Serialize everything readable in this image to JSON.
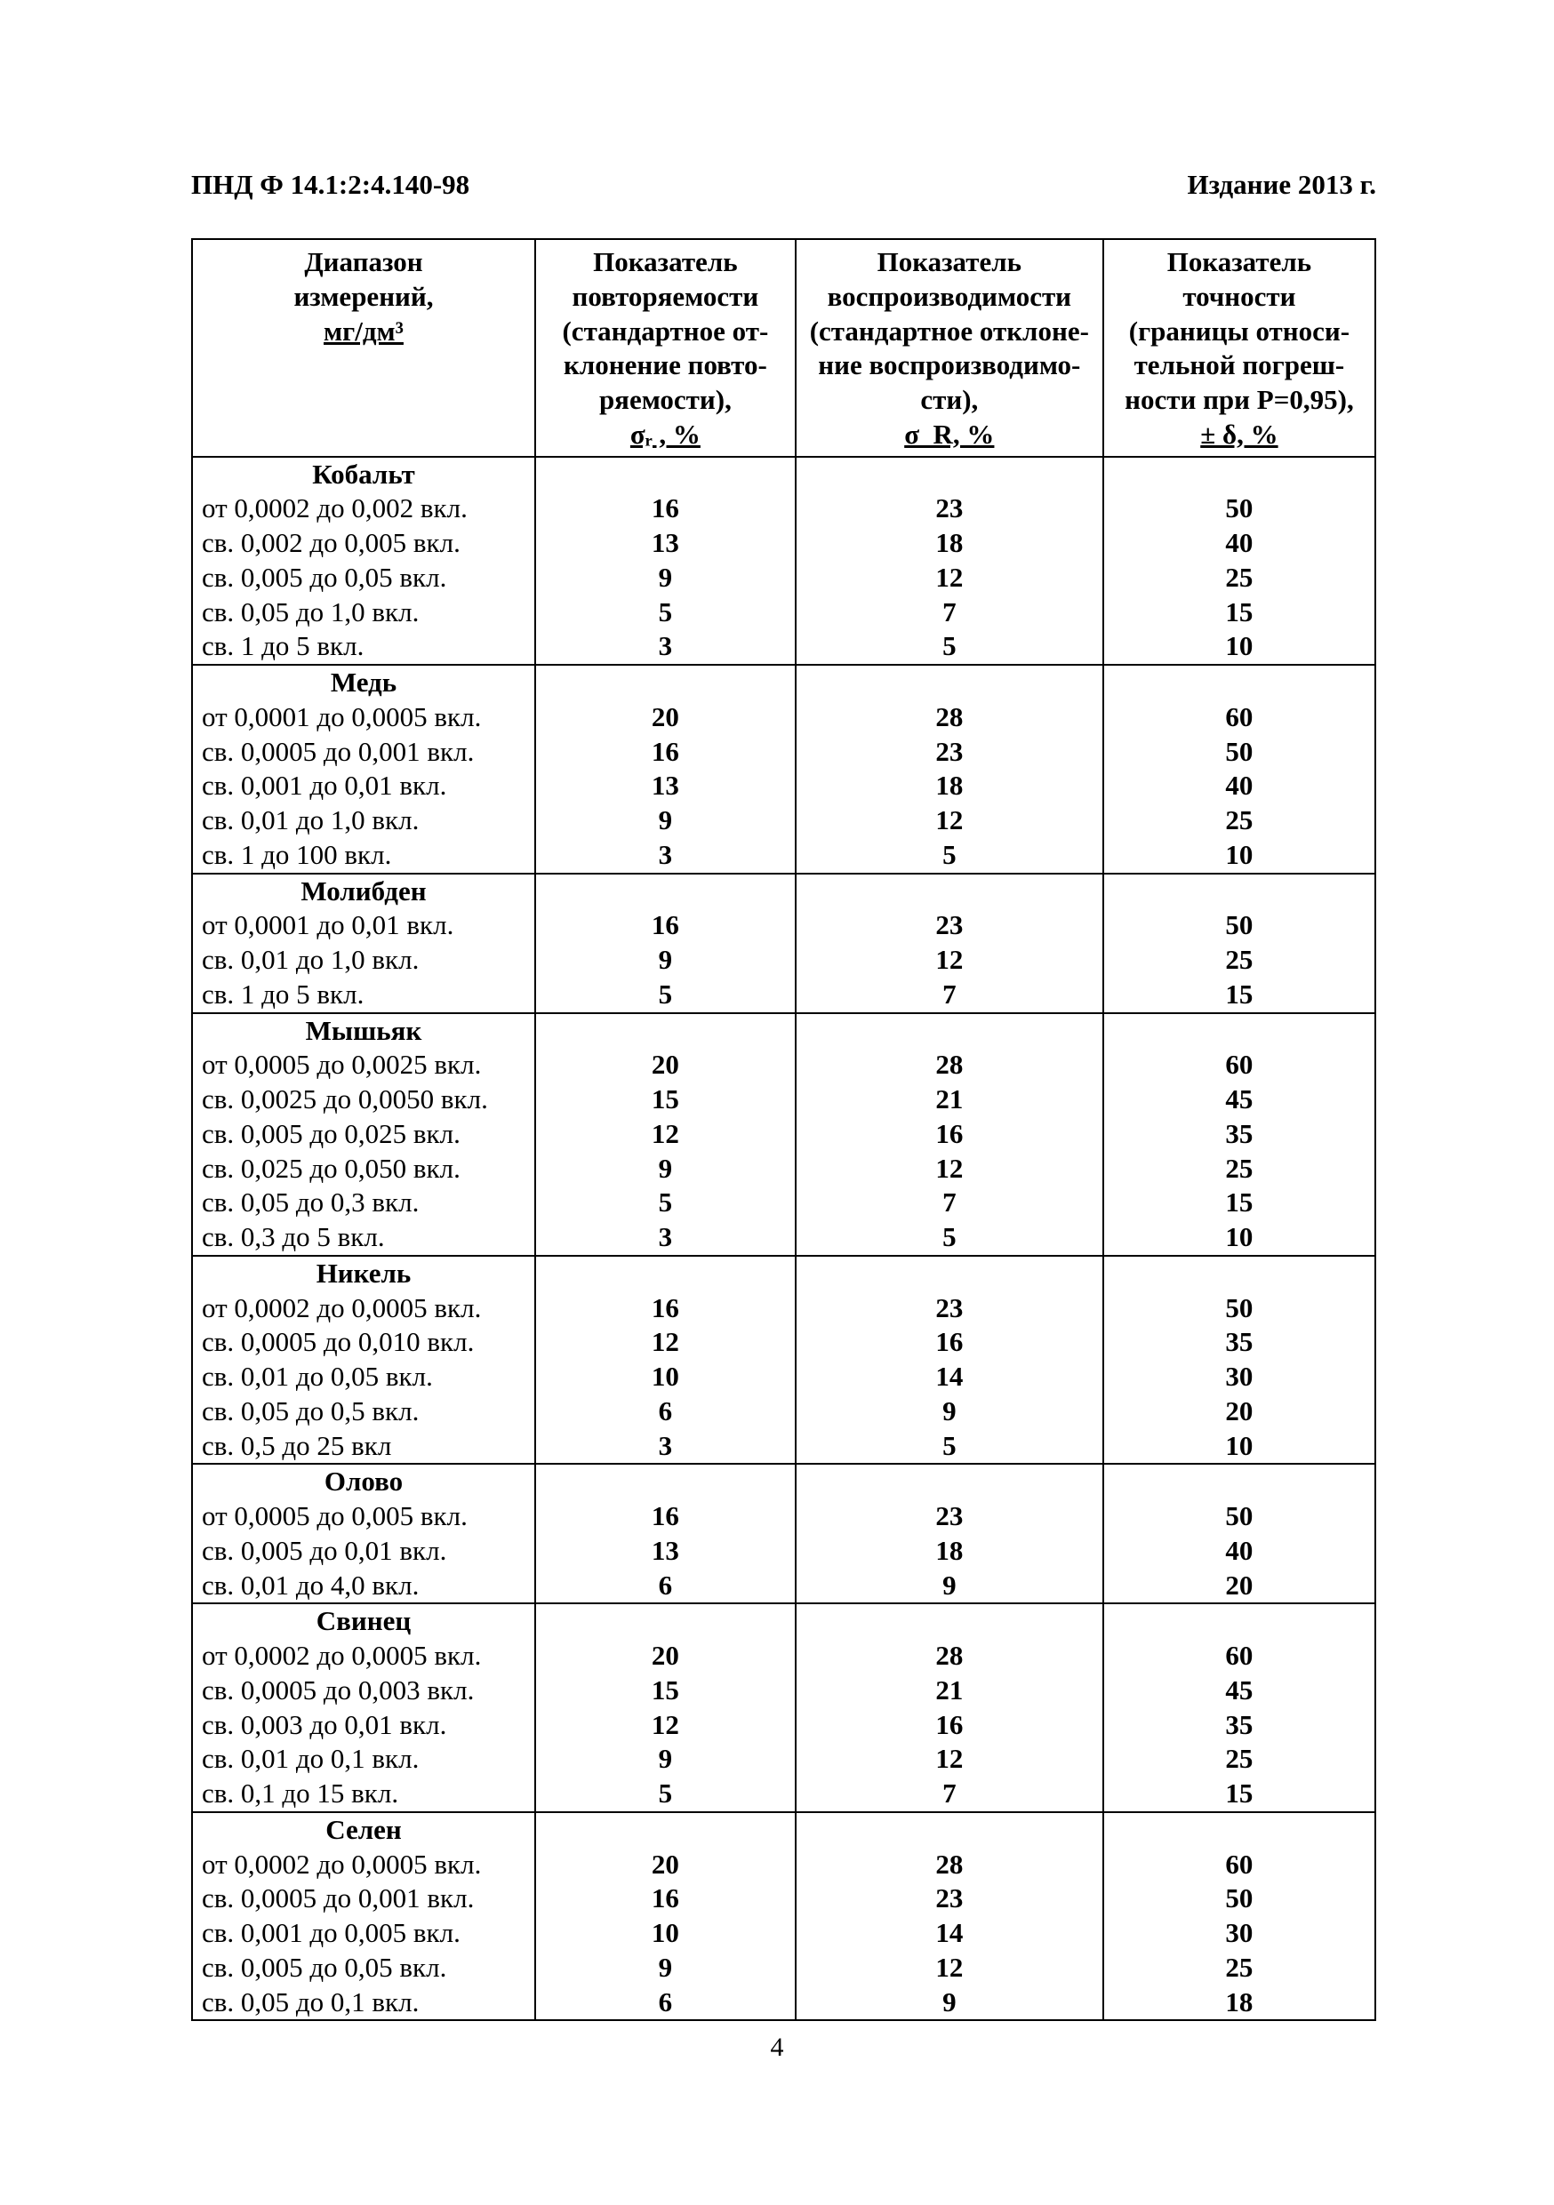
{
  "header": {
    "doc_code": "ПНД Ф 14.1:2:4.140-98",
    "edition": "Издание 2013 г."
  },
  "page_number": "4",
  "table": {
    "columns": [
      {
        "lines": [
          "Диапазон",
          "измерений,",
          "мг/дм³"
        ]
      },
      {
        "lines": [
          "Показатель",
          "повторяемости",
          "(стандартное от-",
          "клонение повто-",
          "ряемости),",
          "σᵣ , %"
        ]
      },
      {
        "lines": [
          "Показатель",
          "воспроизводимости",
          "(стандартное отклоне-",
          "ние воспроизводимо-",
          "сти),",
          "σ_R, %"
        ]
      },
      {
        "lines": [
          "Показатель",
          "точности",
          "(границы относи-",
          "тельной погреш-",
          "ности при P=0,95),",
          "± δ, %"
        ]
      }
    ],
    "sections": [
      {
        "title": "Кобальт",
        "rows": [
          {
            "range": "от 0,0002 до 0,002 вкл.",
            "r": "16",
            "R": "23",
            "d": "50"
          },
          {
            "range": "св. 0,002 до 0,005 вкл.",
            "r": "13",
            "R": "18",
            "d": "40"
          },
          {
            "range": "св. 0,005 до 0,05 вкл.",
            "r": "9",
            "R": "12",
            "d": "25"
          },
          {
            "range": "св. 0,05 до 1,0 вкл.",
            "r": "5",
            "R": "7",
            "d": "15"
          },
          {
            "range": "св. 1 до 5 вкл.",
            "r": "3",
            "R": "5",
            "d": "10"
          }
        ]
      },
      {
        "title": "Медь",
        "rows": [
          {
            "range": "от 0,0001 до 0,0005 вкл.",
            "r": "20",
            "R": "28",
            "d": "60"
          },
          {
            "range": "св. 0,0005 до 0,001 вкл.",
            "r": "16",
            "R": "23",
            "d": "50"
          },
          {
            "range": "св. 0,001 до 0,01 вкл.",
            "r": "13",
            "R": "18",
            "d": "40"
          },
          {
            "range": "св. 0,01 до 1,0 вкл.",
            "r": "9",
            "R": "12",
            "d": "25"
          },
          {
            "range": "св. 1 до 100 вкл.",
            "r": "3",
            "R": "5",
            "d": "10"
          }
        ]
      },
      {
        "title": "Молибден",
        "rows": [
          {
            "range": "от 0,0001 до 0,01 вкл.",
            "r": "16",
            "R": "23",
            "d": "50"
          },
          {
            "range": "св. 0,01 до 1,0 вкл.",
            "r": "9",
            "R": "12",
            "d": "25"
          },
          {
            "range": "св. 1 до 5 вкл.",
            "r": "5",
            "R": "7",
            "d": "15"
          }
        ]
      },
      {
        "title": "Мышьяк",
        "rows": [
          {
            "range": "от 0,0005 до 0,0025 вкл.",
            "r": "20",
            "R": "28",
            "d": "60"
          },
          {
            "range": "св. 0,0025 до 0,0050 вкл.",
            "r": "15",
            "R": "21",
            "d": "45"
          },
          {
            "range": "св. 0,005 до 0,025 вкл.",
            "r": "12",
            "R": "16",
            "d": "35"
          },
          {
            "range": "св. 0,025 до 0,050 вкл.",
            "r": "9",
            "R": "12",
            "d": "25"
          },
          {
            "range": "св. 0,05 до 0,3 вкл.",
            "r": "5",
            "R": "7",
            "d": "15"
          },
          {
            "range": "св. 0,3 до 5 вкл.",
            "r": "3",
            "R": "5",
            "d": "10"
          }
        ]
      },
      {
        "title": "Никель",
        "rows": [
          {
            "range": "от 0,0002 до 0,0005 вкл.",
            "r": "16",
            "R": "23",
            "d": "50"
          },
          {
            "range": "св. 0,0005 до 0,010 вкл.",
            "r": "12",
            "R": "16",
            "d": "35"
          },
          {
            "range": "св. 0,01 до 0,05 вкл.",
            "r": "10",
            "R": "14",
            "d": "30"
          },
          {
            "range": "св. 0,05 до 0,5 вкл.",
            "r": "6",
            "R": "9",
            "d": "20"
          },
          {
            "range": "св. 0,5 до 25 вкл",
            "r": "3",
            "R": "5",
            "d": "10"
          }
        ]
      },
      {
        "title": "Олово",
        "rows": [
          {
            "range": "от 0,0005 до 0,005 вкл.",
            "r": "16",
            "R": "23",
            "d": "50"
          },
          {
            "range": "св. 0,005 до 0,01 вкл.",
            "r": "13",
            "R": "18",
            "d": "40"
          },
          {
            "range": "св. 0,01 до 4,0 вкл.",
            "r": "6",
            "R": "9",
            "d": "20"
          }
        ]
      },
      {
        "title": "Свинец",
        "rows": [
          {
            "range": "от 0,0002 до 0,0005 вкл.",
            "r": "20",
            "R": "28",
            "d": "60"
          },
          {
            "range": "св. 0,0005 до 0,003 вкл.",
            "r": "15",
            "R": "21",
            "d": "45"
          },
          {
            "range": "св. 0,003 до 0,01 вкл.",
            "r": "12",
            "R": "16",
            "d": "35"
          },
          {
            "range": "св. 0,01 до 0,1 вкл.",
            "r": "9",
            "R": "12",
            "d": "25"
          },
          {
            "range": "св. 0,1 до 15 вкл.",
            "r": "5",
            "R": "7",
            "d": "15"
          }
        ]
      },
      {
        "title": "Селен",
        "rows": [
          {
            "range": "от 0,0002 до 0,0005 вкл.",
            "r": "20",
            "R": "28",
            "d": "60"
          },
          {
            "range": "св. 0,0005 до 0,001 вкл.",
            "r": "16",
            "R": "23",
            "d": "50"
          },
          {
            "range": "св. 0,001 до 0,005 вкл.",
            "r": "10",
            "R": "14",
            "d": "30"
          },
          {
            "range": "св. 0,005 до 0,05 вкл.",
            "r": "9",
            "R": "12",
            "d": "25"
          },
          {
            "range": "св. 0,05 до 0,1 вкл.",
            "r": "6",
            "R": "9",
            "d": "18"
          }
        ]
      }
    ]
  }
}
